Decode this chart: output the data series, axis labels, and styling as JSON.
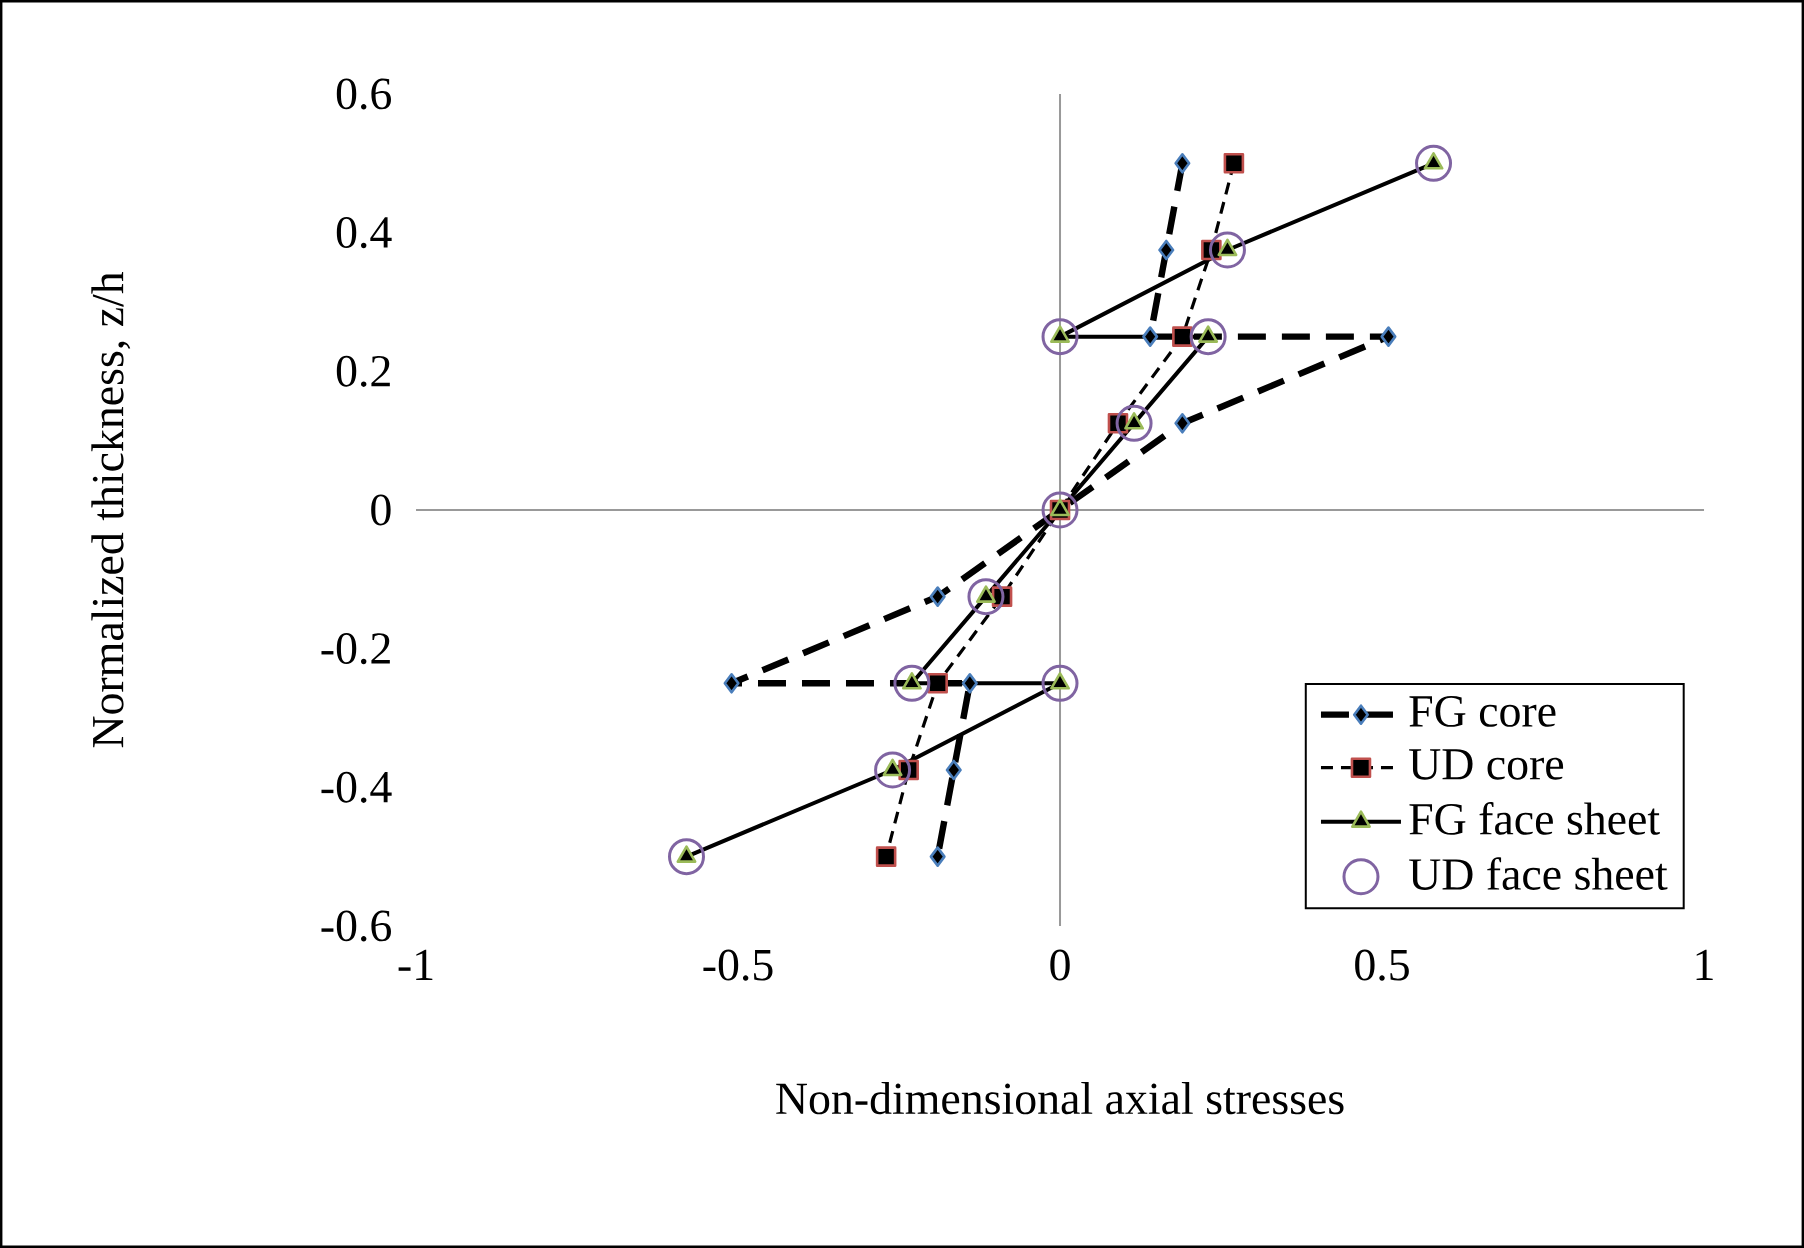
{
  "chart_data": {
    "type": "line",
    "xlabel": "Non-dimensional axial stresses",
    "ylabel": "Normalized thickness, z/h",
    "xlim": [
      -1,
      1
    ],
    "ylim": [
      -0.6,
      0.6
    ],
    "xticks": [
      -1,
      -0.5,
      0,
      0.5,
      1
    ],
    "yticks": [
      -0.6,
      -0.4,
      -0.2,
      0,
      0.2,
      0.4,
      0.6
    ],
    "legend": "bottom right",
    "series": [
      {
        "name": "FG core",
        "type": "line",
        "color": "#4a7ebb",
        "marker": "diamond",
        "line_style": "dashed",
        "x": [
          0.19,
          0.165,
          0.14,
          0.51,
          0.19,
          0,
          -0.19,
          -0.51,
          -0.14,
          -0.165,
          -0.19
        ],
        "values": [
          0.5,
          0.375,
          0.25,
          0.25,
          0.125,
          0,
          -0.125,
          -0.25,
          -0.25,
          -0.375,
          -0.5
        ]
      },
      {
        "name": "UD core",
        "type": "line",
        "color": "#c0504d",
        "marker": "square",
        "line_style": "dotted",
        "x": [
          0.27,
          0.235,
          0.19,
          0.09,
          0,
          -0.09,
          -0.19,
          -0.235,
          -0.27
        ],
        "values": [
          0.5,
          0.375,
          0.25,
          0.125,
          0,
          -0.125,
          -0.25,
          -0.375,
          -0.5
        ]
      },
      {
        "name": "FG face sheet",
        "type": "line",
        "color": "#9bbb59",
        "marker": "triangle",
        "line_style": "solid",
        "x": [
          0.58,
          0.26,
          0,
          0.23,
          0.115,
          0,
          -0.115,
          -0.23,
          0,
          -0.26,
          -0.58
        ],
        "values": [
          0.5,
          0.375,
          0.25,
          0.25,
          0.125,
          0,
          -0.125,
          -0.25,
          -0.25,
          -0.375,
          -0.5
        ]
      },
      {
        "name": "UD face sheet",
        "type": "scatter",
        "color": "#8064a2",
        "marker": "circle",
        "x": [
          0.58,
          0.26,
          0,
          0.23,
          0.115,
          0,
          -0.115,
          -0.23,
          0,
          -0.26,
          -0.58
        ],
        "values": [
          0.5,
          0.375,
          0.25,
          0.25,
          0.125,
          0,
          -0.125,
          -0.25,
          -0.25,
          -0.375,
          -0.5
        ]
      }
    ]
  }
}
